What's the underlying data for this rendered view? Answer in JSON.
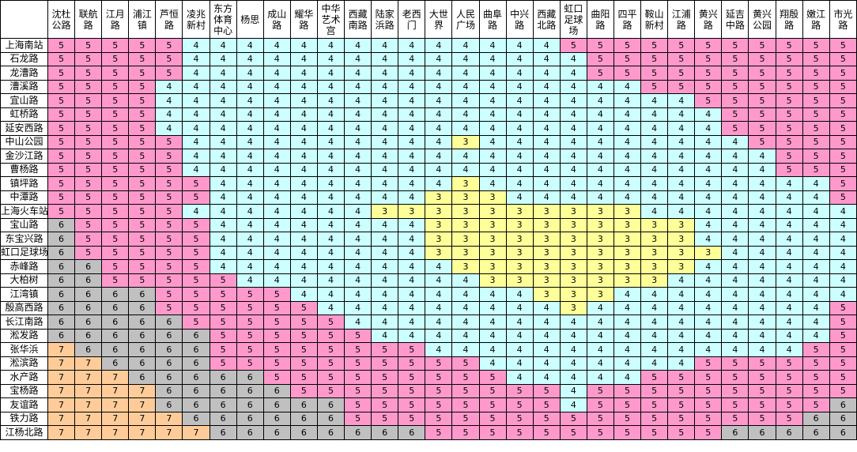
{
  "columns": [
    "沈杜\n公路",
    "联航\n路",
    "江月\n路",
    "浦江\n镇",
    "芦恒\n路",
    "凌兆\n新村",
    "东方\n体育\n中心",
    "杨思",
    "成山\n路",
    "耀华\n路",
    "中华\n艺术\n宫",
    "西藏\n南路",
    "陆家\n浜路",
    "老西\n门",
    "大世\n界",
    "人民\n广场",
    "曲阜\n路",
    "中兴\n路",
    "西藏\n北路",
    "虹口\n足球\n场",
    "曲阳\n路",
    "四平\n路",
    "鞍山\n新村",
    "江浦\n路",
    "黄兴\n路",
    "延吉\n中路",
    "黄兴\n公园",
    "翔殷\n路",
    "嫩江\n路",
    "市光\n路"
  ],
  "rows": [
    {
      "name": "上海南站",
      "fares": [
        5,
        5,
        5,
        5,
        5,
        4,
        4,
        4,
        4,
        4,
        4,
        4,
        4,
        4,
        4,
        4,
        4,
        4,
        4,
        5,
        5,
        5,
        5,
        5,
        5,
        5,
        5,
        5,
        5,
        5
      ]
    },
    {
      "name": "石龙路",
      "fares": [
        5,
        5,
        5,
        5,
        5,
        4,
        4,
        4,
        4,
        4,
        4,
        4,
        4,
        4,
        4,
        4,
        4,
        4,
        4,
        4,
        5,
        5,
        5,
        5,
        5,
        5,
        5,
        5,
        5,
        5
      ]
    },
    {
      "name": "龙漕路",
      "fares": [
        5,
        5,
        5,
        5,
        5,
        4,
        4,
        4,
        4,
        4,
        4,
        4,
        4,
        4,
        4,
        4,
        4,
        4,
        4,
        4,
        5,
        5,
        5,
        5,
        5,
        5,
        5,
        5,
        5,
        5
      ]
    },
    {
      "name": "漕溪路",
      "fares": [
        5,
        5,
        5,
        5,
        4,
        4,
        4,
        4,
        4,
        4,
        4,
        4,
        4,
        4,
        4,
        4,
        4,
        4,
        4,
        4,
        4,
        4,
        5,
        5,
        5,
        5,
        5,
        5,
        5,
        5
      ]
    },
    {
      "name": "宜山路",
      "fares": [
        5,
        5,
        5,
        5,
        4,
        4,
        4,
        4,
        4,
        4,
        4,
        4,
        4,
        4,
        4,
        4,
        4,
        4,
        4,
        4,
        4,
        4,
        4,
        4,
        5,
        5,
        5,
        5,
        5,
        5
      ]
    },
    {
      "name": "虹桥路",
      "fares": [
        5,
        5,
        5,
        5,
        4,
        4,
        4,
        4,
        4,
        4,
        4,
        4,
        4,
        4,
        4,
        4,
        4,
        4,
        4,
        4,
        4,
        4,
        4,
        4,
        4,
        5,
        5,
        5,
        5,
        5
      ]
    },
    {
      "name": "延安西路",
      "fares": [
        5,
        5,
        5,
        5,
        4,
        4,
        4,
        4,
        4,
        4,
        4,
        4,
        4,
        4,
        4,
        4,
        4,
        4,
        4,
        4,
        4,
        4,
        4,
        4,
        4,
        5,
        5,
        5,
        5,
        5
      ]
    },
    {
      "name": "中山公园",
      "fares": [
        5,
        5,
        5,
        5,
        5,
        4,
        4,
        4,
        4,
        4,
        4,
        4,
        4,
        4,
        4,
        3,
        4,
        4,
        4,
        4,
        4,
        4,
        4,
        4,
        4,
        4,
        5,
        5,
        5,
        5
      ]
    },
    {
      "name": "金沙江路",
      "fares": [
        5,
        5,
        5,
        5,
        5,
        4,
        4,
        4,
        4,
        4,
        4,
        4,
        4,
        4,
        4,
        4,
        4,
        4,
        4,
        4,
        4,
        4,
        4,
        4,
        4,
        4,
        4,
        5,
        5,
        5
      ]
    },
    {
      "name": "曹杨路",
      "fares": [
        5,
        5,
        5,
        5,
        5,
        4,
        4,
        4,
        4,
        4,
        4,
        4,
        4,
        4,
        4,
        4,
        4,
        4,
        4,
        4,
        4,
        4,
        4,
        4,
        4,
        4,
        4,
        5,
        5,
        5
      ]
    },
    {
      "name": "镇坪路",
      "fares": [
        5,
        5,
        5,
        5,
        5,
        5,
        4,
        4,
        4,
        4,
        4,
        4,
        4,
        4,
        4,
        3,
        4,
        4,
        4,
        4,
        4,
        4,
        4,
        4,
        4,
        4,
        4,
        4,
        4,
        5
      ]
    },
    {
      "name": "中潭路",
      "fares": [
        5,
        5,
        5,
        5,
        5,
        5,
        4,
        4,
        4,
        4,
        4,
        4,
        4,
        4,
        3,
        3,
        3,
        4,
        4,
        4,
        4,
        4,
        4,
        4,
        4,
        4,
        4,
        4,
        4,
        5
      ]
    },
    {
      "name": "上海火车站",
      "fares": [
        5,
        5,
        5,
        5,
        5,
        4,
        4,
        4,
        4,
        4,
        4,
        4,
        3,
        3,
        3,
        3,
        3,
        3,
        3,
        3,
        3,
        3,
        4,
        4,
        4,
        4,
        4,
        4,
        4,
        4
      ]
    },
    {
      "name": "宝山路",
      "fares": [
        6,
        5,
        5,
        5,
        5,
        5,
        4,
        4,
        4,
        4,
        4,
        4,
        4,
        4,
        3,
        3,
        3,
        3,
        3,
        3,
        3,
        3,
        3,
        3,
        4,
        4,
        4,
        4,
        4,
        4
      ]
    },
    {
      "name": "东宝兴路",
      "fares": [
        6,
        5,
        5,
        5,
        5,
        5,
        4,
        4,
        4,
        4,
        4,
        4,
        4,
        4,
        3,
        3,
        3,
        3,
        3,
        3,
        3,
        3,
        3,
        3,
        4,
        4,
        4,
        4,
        4,
        4
      ]
    },
    {
      "name": "虹口足球场",
      "fares": [
        6,
        5,
        5,
        5,
        5,
        5,
        4,
        4,
        4,
        4,
        4,
        4,
        4,
        4,
        3,
        3,
        3,
        3,
        3,
        3,
        3,
        3,
        3,
        3,
        3,
        4,
        4,
        4,
        4,
        4
      ]
    },
    {
      "name": "赤峰路",
      "fares": [
        6,
        6,
        5,
        5,
        5,
        5,
        4,
        4,
        4,
        4,
        4,
        4,
        4,
        4,
        4,
        3,
        3,
        3,
        3,
        3,
        3,
        3,
        3,
        3,
        4,
        4,
        4,
        4,
        4,
        4
      ]
    },
    {
      "name": "大柏树",
      "fares": [
        6,
        6,
        5,
        5,
        5,
        5,
        5,
        4,
        4,
        4,
        4,
        4,
        4,
        4,
        4,
        4,
        3,
        3,
        3,
        3,
        3,
        3,
        3,
        4,
        4,
        4,
        4,
        4,
        4,
        4
      ]
    },
    {
      "name": "江湾镇",
      "fares": [
        6,
        6,
        6,
        6,
        5,
        5,
        5,
        5,
        5,
        4,
        4,
        4,
        4,
        4,
        4,
        4,
        4,
        4,
        3,
        3,
        3,
        4,
        4,
        4,
        4,
        4,
        4,
        4,
        4,
        4
      ]
    },
    {
      "name": "殷高西路",
      "fares": [
        6,
        6,
        6,
        6,
        5,
        5,
        5,
        5,
        5,
        5,
        4,
        4,
        4,
        4,
        4,
        4,
        4,
        4,
        4,
        3,
        4,
        4,
        4,
        4,
        4,
        4,
        4,
        4,
        4,
        5
      ]
    },
    {
      "name": "长江南路",
      "fares": [
        6,
        6,
        6,
        6,
        6,
        5,
        5,
        5,
        5,
        5,
        5,
        4,
        4,
        4,
        4,
        4,
        4,
        4,
        4,
        4,
        4,
        4,
        4,
        4,
        4,
        4,
        4,
        4,
        4,
        5
      ]
    },
    {
      "name": "淞发路",
      "fares": [
        6,
        6,
        6,
        6,
        6,
        6,
        5,
        5,
        5,
        5,
        5,
        5,
        4,
        4,
        4,
        4,
        4,
        4,
        4,
        4,
        4,
        4,
        4,
        4,
        4,
        4,
        4,
        4,
        4,
        5
      ]
    },
    {
      "name": "张华浜",
      "fares": [
        7,
        6,
        6,
        6,
        6,
        6,
        5,
        5,
        5,
        5,
        5,
        5,
        5,
        5,
        4,
        4,
        4,
        4,
        4,
        4,
        4,
        4,
        4,
        4,
        4,
        4,
        4,
        4,
        5,
        5
      ]
    },
    {
      "name": "淞滨路",
      "fares": [
        7,
        7,
        6,
        6,
        6,
        6,
        5,
        5,
        5,
        5,
        5,
        5,
        5,
        5,
        5,
        5,
        4,
        4,
        4,
        4,
        4,
        4,
        4,
        4,
        5,
        5,
        5,
        5,
        5,
        5
      ]
    },
    {
      "name": "水产路",
      "fares": [
        7,
        7,
        7,
        6,
        6,
        6,
        6,
        6,
        5,
        5,
        5,
        5,
        5,
        5,
        5,
        5,
        5,
        4,
        4,
        4,
        4,
        4,
        5,
        5,
        5,
        5,
        5,
        5,
        5,
        5
      ]
    },
    {
      "name": "宝杨路",
      "fares": [
        7,
        7,
        7,
        7,
        6,
        6,
        6,
        6,
        6,
        5,
        5,
        5,
        5,
        5,
        5,
        5,
        5,
        5,
        5,
        4,
        5,
        5,
        5,
        5,
        5,
        5,
        5,
        5,
        5,
        5
      ]
    },
    {
      "name": "友谊路",
      "fares": [
        7,
        7,
        7,
        7,
        6,
        6,
        6,
        6,
        6,
        6,
        6,
        5,
        5,
        5,
        5,
        5,
        5,
        5,
        5,
        4,
        5,
        5,
        5,
        5,
        5,
        5,
        5,
        5,
        5,
        6
      ]
    },
    {
      "name": "铁力路",
      "fares": [
        7,
        7,
        7,
        7,
        7,
        6,
        6,
        6,
        6,
        6,
        6,
        5,
        5,
        5,
        5,
        5,
        5,
        5,
        5,
        5,
        5,
        5,
        5,
        5,
        5,
        5,
        5,
        5,
        6,
        6
      ]
    },
    {
      "name": "江杨北路",
      "fares": [
        7,
        7,
        7,
        7,
        7,
        7,
        6,
        6,
        6,
        6,
        6,
        6,
        6,
        6,
        5,
        5,
        5,
        5,
        5,
        5,
        5,
        5,
        5,
        5,
        5,
        6,
        6,
        6,
        6,
        6
      ]
    }
  ],
  "colors": {
    "3": "#ffff99",
    "4": "#ccffff",
    "5": "#ff99cc",
    "6": "#c0c0c0",
    "7": "#ffcc99"
  }
}
